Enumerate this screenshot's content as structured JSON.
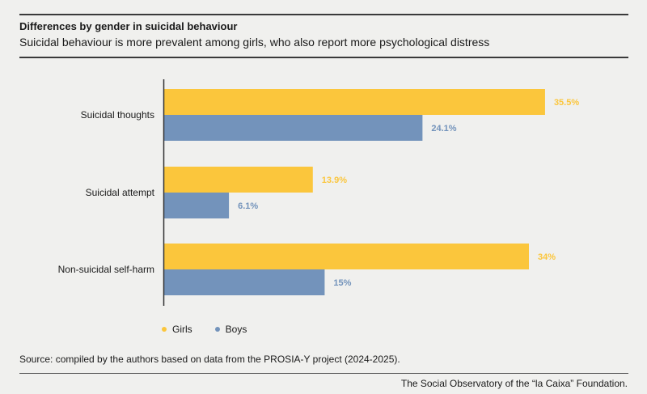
{
  "header": {
    "title": "Differences by gender in suicidal behaviour",
    "subtitle": "Suicidal behaviour is more prevalent among girls, who also report more psychological distress"
  },
  "footer": {
    "source": "Source: compiled by the authors based on data from the PROSIA-Y project (2024-2025).",
    "credit": "The Social Observatory of the “la Caixa” Foundation."
  },
  "colors": {
    "girls": "#fbc63c",
    "boys": "#7393bb",
    "axis": "#333333",
    "background": "#f0f0ee"
  },
  "chart_data": {
    "type": "bar",
    "orientation": "horizontal",
    "categories": [
      "Suicidal thoughts",
      "Suicidal attempt",
      "Non-suicidal self-harm"
    ],
    "series": [
      {
        "name": "Girls",
        "values": [
          35.5,
          13.9,
          34
        ],
        "labels": [
          "35.5%",
          "13.9%",
          "34%"
        ]
      },
      {
        "name": "Boys",
        "values": [
          24.1,
          6.1,
          15
        ],
        "labels": [
          "24.1%",
          "6.1%",
          "15%"
        ]
      }
    ],
    "xlim": [
      0,
      42.5
    ],
    "grid": false,
    "legend_placement": "bottom-left"
  }
}
